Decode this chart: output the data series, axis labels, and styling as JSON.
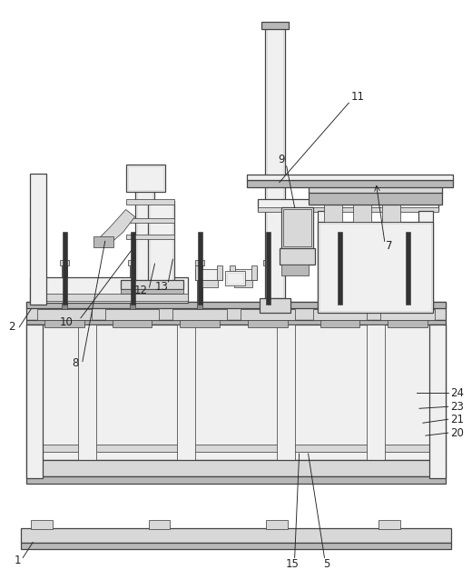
{
  "bg_color": "#ffffff",
  "lc": "#444444",
  "fc_light": "#f0f0f0",
  "fc_mid": "#d8d8d8",
  "fc_dark": "#b8b8b8",
  "fc_vdark": "#888888",
  "label_color": "#222222",
  "label_fs": 8.5,
  "lw_main": 0.9,
  "lw_thin": 0.55,
  "lw_thick": 1.2
}
